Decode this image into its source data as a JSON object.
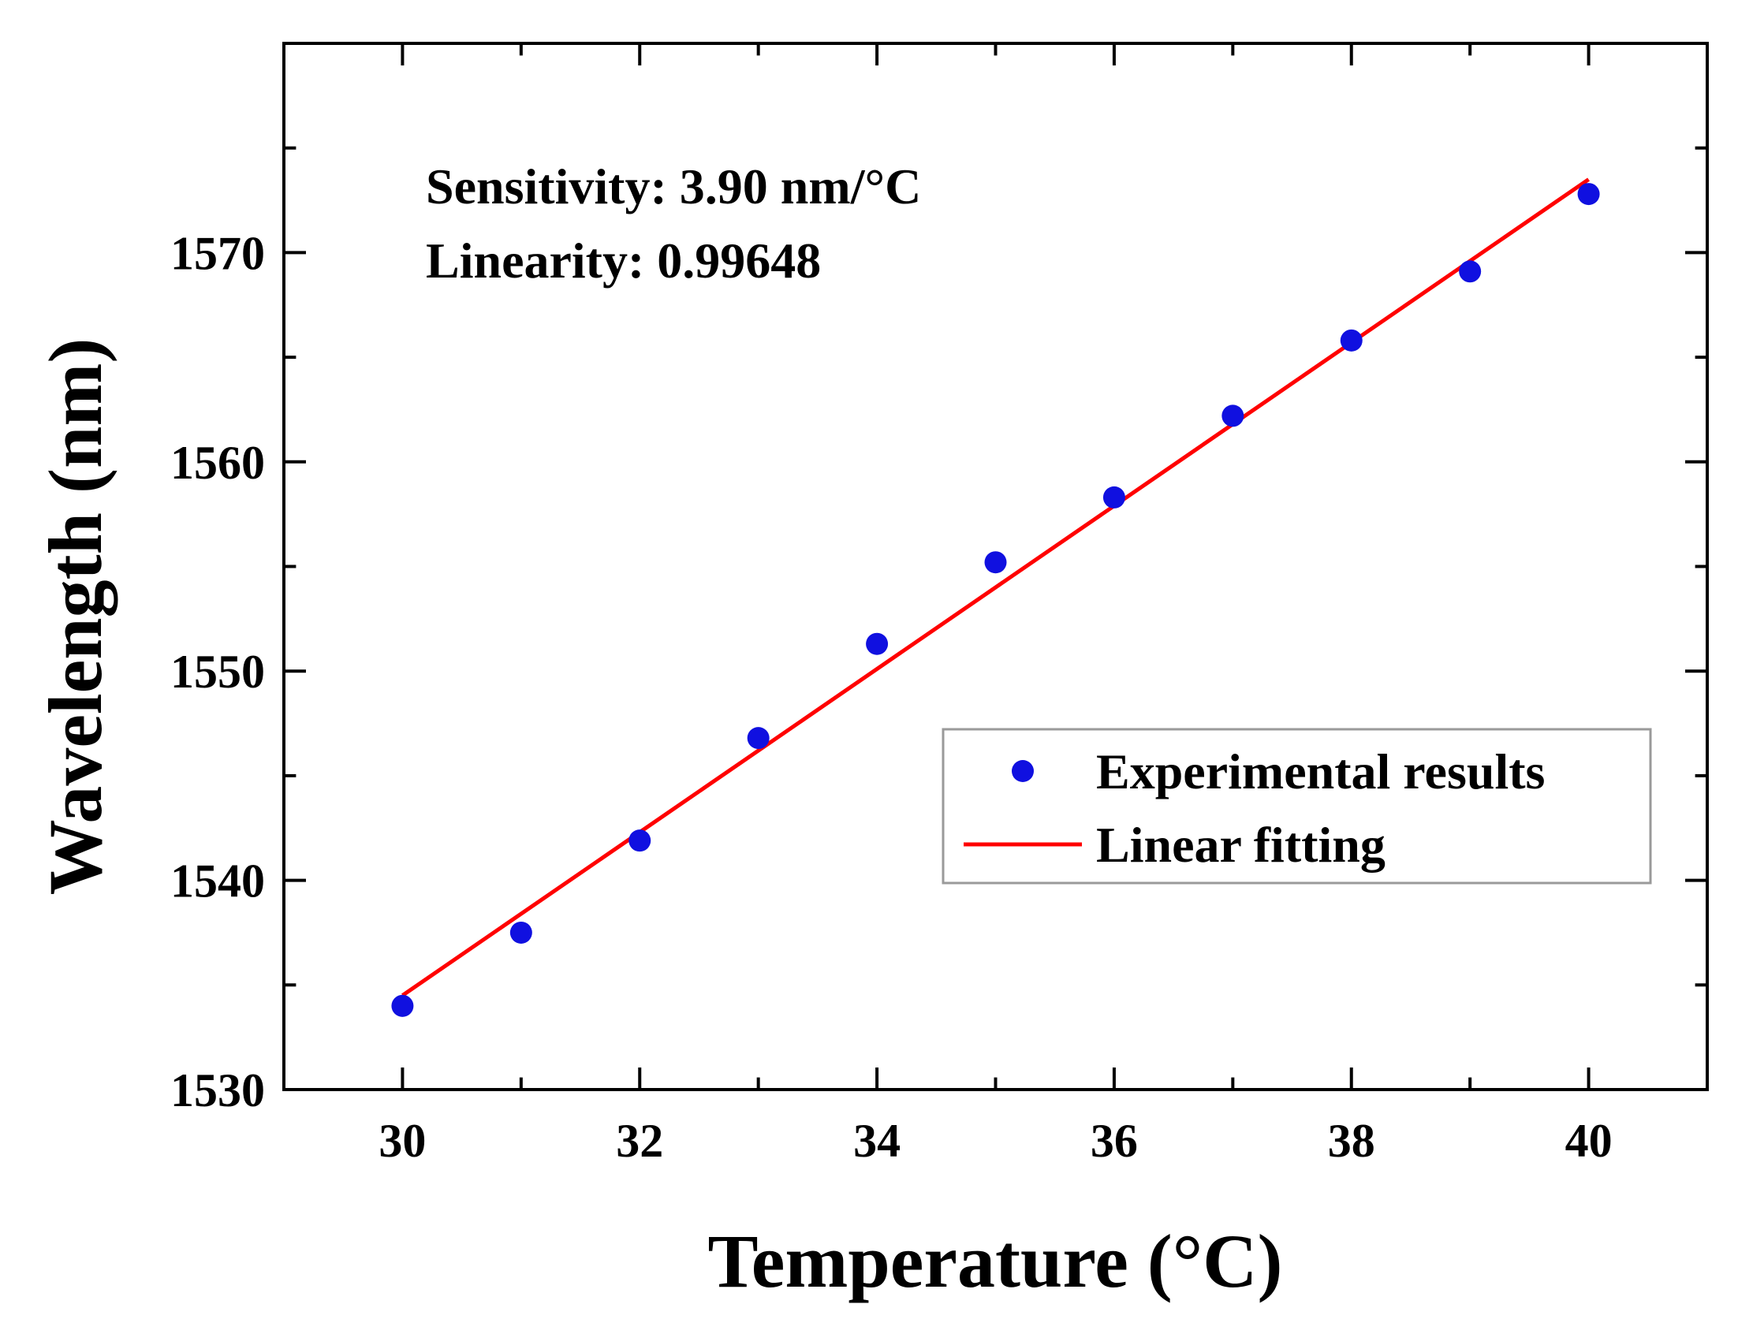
{
  "chart_data": {
    "type": "scatter",
    "title": "",
    "xlabel": "Temperature (°C)",
    "ylabel": "Wavelength (nm)",
    "xlim": [
      29,
      41
    ],
    "ylim": [
      1530,
      1580
    ],
    "xticks": [
      30,
      32,
      34,
      36,
      38,
      40
    ],
    "yticks": [
      1530,
      1540,
      1550,
      1560,
      1570
    ],
    "x_minor_step": 1,
    "y_minor_step": 5,
    "grid": false,
    "legend_position": "center-right",
    "annotations": [
      "Sensitivity: 3.90 nm/°C",
      "Linearity: 0.99648"
    ],
    "series": [
      {
        "name": "Experimental results",
        "kind": "scatter",
        "color": "#1010e0",
        "x": [
          30,
          31,
          32,
          33,
          34,
          35,
          36,
          37,
          38,
          39,
          40
        ],
        "y": [
          1534.0,
          1537.5,
          1541.9,
          1546.8,
          1551.3,
          1555.2,
          1558.3,
          1562.2,
          1565.8,
          1569.1,
          1572.8
        ]
      },
      {
        "name": "Linear fitting",
        "kind": "line",
        "color": "#ff0000",
        "slope": 3.9,
        "intercept": 1417.5,
        "x_range": [
          30,
          40
        ]
      }
    ]
  }
}
